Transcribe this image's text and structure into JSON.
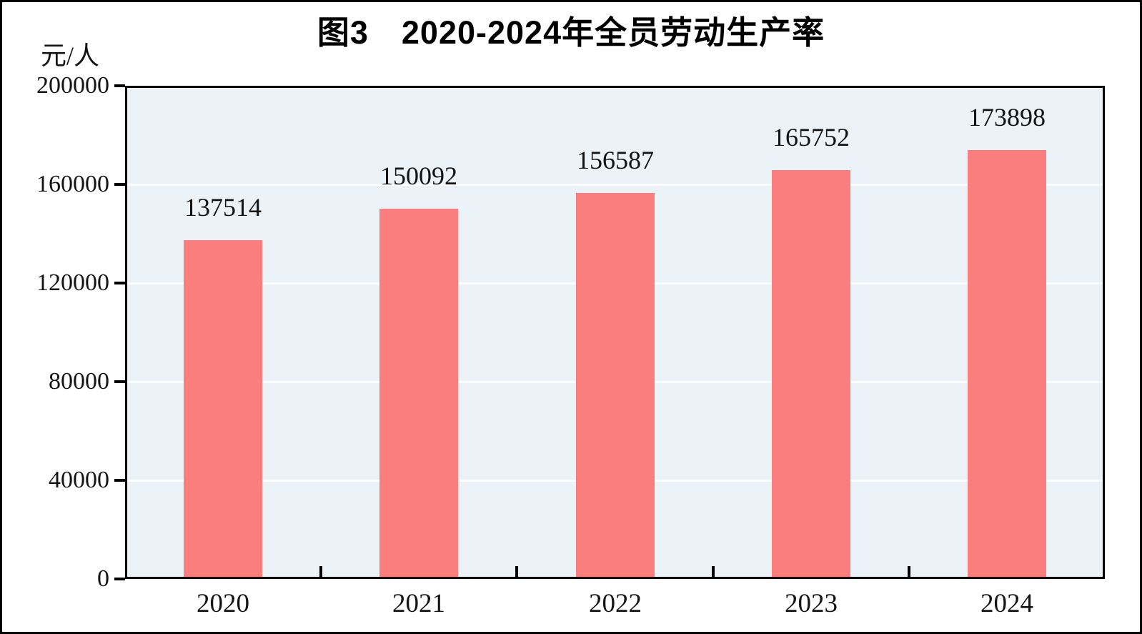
{
  "page": {
    "background": "#ffffff",
    "frame_border_color": "#000000"
  },
  "chart_data": {
    "type": "bar",
    "title": "图3　2020-2024年全员劳动生产率",
    "ylabel": "元/人",
    "xlabel": "",
    "categories": [
      "2020",
      "2021",
      "2022",
      "2023",
      "2024"
    ],
    "values": [
      137514,
      150092,
      156587,
      165752,
      173898
    ],
    "data_labels": [
      "137514",
      "150092",
      "156587",
      "165752",
      "173898"
    ],
    "ylim": [
      0,
      200000
    ],
    "ytick_interval": 40000,
    "yticks": [
      0,
      40000,
      80000,
      120000,
      160000,
      200000
    ],
    "ytick_labels": [
      "0",
      "40000",
      "80000",
      "120000",
      "160000",
      "200000"
    ],
    "grid": true,
    "gridline_color": "#ffffff",
    "bar_color": "#FB7E7E",
    "plot_background": "#EBF2F8",
    "axis_color": "#000000",
    "legend": "none"
  }
}
